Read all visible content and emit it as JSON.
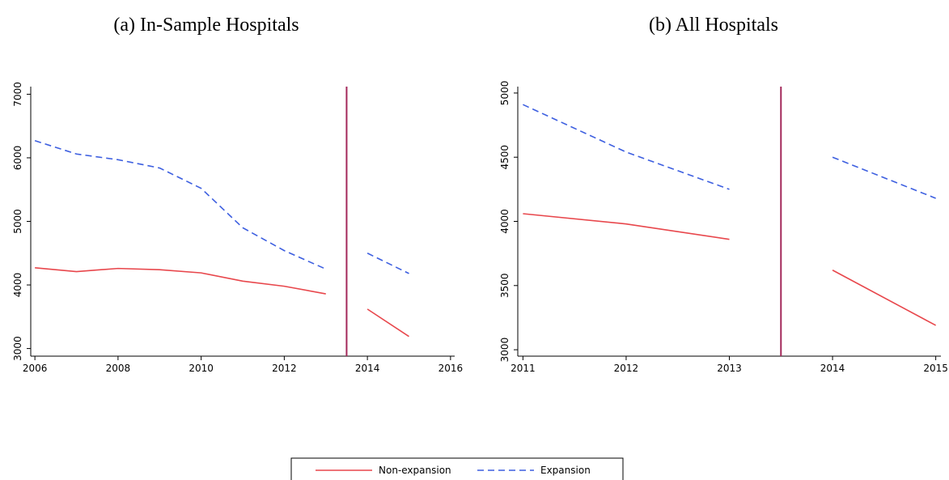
{
  "chart_data": [
    {
      "type": "line",
      "title": "(a) In-Sample Hospitals",
      "x": [
        2006,
        2007,
        2008,
        2009,
        2010,
        2011,
        2012,
        2013,
        2014,
        2015
      ],
      "series": [
        {
          "name": "Non-expansion",
          "color": "#e8474c",
          "dash": false,
          "values": [
            4270,
            4210,
            4260,
            4240,
            4190,
            4060,
            3980,
            3860,
            3620,
            3190
          ]
        },
        {
          "name": "Expansion",
          "color": "#3d5fe0",
          "dash": true,
          "values": [
            6270,
            6060,
            5970,
            5840,
            5520,
            4900,
            4540,
            4250,
            4500,
            4180
          ]
        }
      ],
      "xlim": [
        2005.9,
        2016.1
      ],
      "xticks": [
        2006,
        2008,
        2010,
        2012,
        2014,
        2016
      ],
      "ylim": [
        2880,
        7120
      ],
      "yticks": [
        3000,
        4000,
        5000,
        6000,
        7000
      ],
      "vline": 2013.5,
      "vline_color": "#a3285a"
    },
    {
      "type": "line",
      "title": "(b) All Hospitals",
      "x": [
        2011,
        2012,
        2013,
        2014,
        2015
      ],
      "series": [
        {
          "color": "#e8474c",
          "dash": false,
          "values": [
            4060,
            3980,
            3860,
            3620,
            3190
          ]
        },
        {
          "color": "#3d5fe0",
          "dash": true,
          "values": [
            4910,
            4540,
            4250,
            4500,
            4180
          ]
        }
      ],
      "xlim": [
        2010.95,
        2015.05
      ],
      "xticks": [
        2011,
        2012,
        2013,
        2014,
        2015
      ],
      "ylim": [
        2950,
        5050
      ],
      "yticks": [
        3000,
        3500,
        4000,
        4500,
        5000
      ],
      "vline": 2013.5,
      "vline_color": "#a3285a"
    }
  ]
}
